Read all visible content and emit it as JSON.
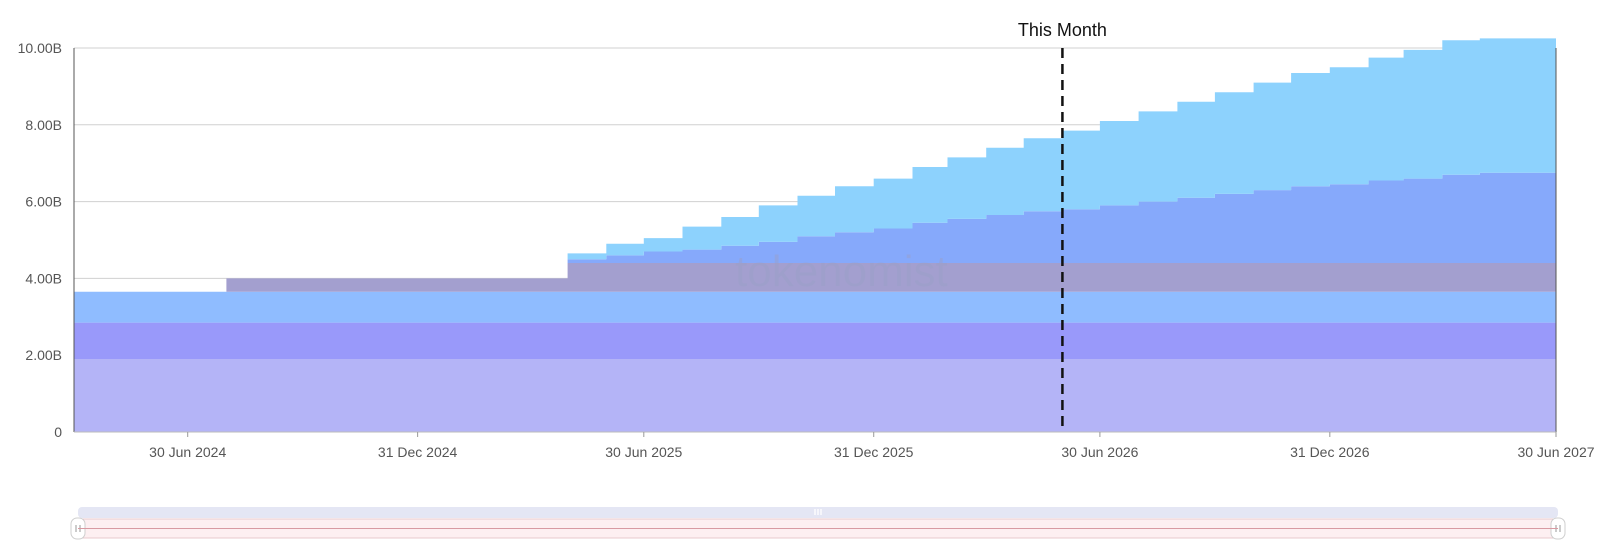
{
  "chart_data": {
    "type": "area",
    "step": true,
    "stacked": true,
    "x_axis": {
      "range": [
        "2024-03-31",
        "2027-06-30"
      ],
      "tick_labels": [
        {
          "date": "2024-06-30",
          "label": "30 Jun 2024"
        },
        {
          "date": "2024-12-31",
          "label": "31 Dec 2024"
        },
        {
          "date": "2025-06-30",
          "label": "30 Jun 2025"
        },
        {
          "date": "2025-12-31",
          "label": "31 Dec 2025"
        },
        {
          "date": "2026-06-30",
          "label": "30 Jun 2026"
        },
        {
          "date": "2026-12-31",
          "label": "31 Dec 2026"
        },
        {
          "date": "2027-06-30",
          "label": "30 Jun 2027"
        }
      ]
    },
    "y_axis": {
      "range": [
        0,
        10
      ],
      "unit": "B",
      "tick_labels": [
        {
          "value": 0,
          "label": "0"
        },
        {
          "value": 2,
          "label": "2.00B"
        },
        {
          "value": 4,
          "label": "4.00B"
        },
        {
          "value": 6,
          "label": "6.00B"
        },
        {
          "value": 8,
          "label": "8.00B"
        },
        {
          "value": 10,
          "label": "10.00B"
        }
      ]
    },
    "grid": true,
    "legend": "none",
    "annotations": [
      {
        "type": "vertical-dashed-line",
        "date": "2026-05-31",
        "label": "This Month"
      }
    ],
    "watermark": "tokenomist",
    "series": [
      {
        "color": "#b4b4f7",
        "points": [
          [
            "2024-03-31",
            1.9
          ],
          [
            "2027-06-30",
            1.9
          ]
        ]
      },
      {
        "color": "#9999fa",
        "points": [
          [
            "2024-03-31",
            0.95
          ],
          [
            "2027-06-30",
            0.95
          ]
        ]
      },
      {
        "color": "#8fbcff",
        "points": [
          [
            "2024-03-31",
            0.8
          ],
          [
            "2027-06-30",
            0.8
          ]
        ]
      },
      {
        "color": "#a39fcf",
        "points": [
          [
            "2024-03-31",
            0
          ],
          [
            "2024-07-31",
            0.35
          ],
          [
            "2025-04-30",
            0.75
          ],
          [
            "2027-06-30",
            0.75
          ]
        ]
      },
      {
        "color": "#86a9fb",
        "points": [
          [
            "2024-03-31",
            0
          ],
          [
            "2025-04-30",
            0.1
          ],
          [
            "2025-05-31",
            0.2
          ],
          [
            "2025-06-30",
            0.3
          ],
          [
            "2025-07-31",
            0.35
          ],
          [
            "2025-08-31",
            0.45
          ],
          [
            "2025-09-30",
            0.55
          ],
          [
            "2025-10-31",
            0.7
          ],
          [
            "2025-11-30",
            0.8
          ],
          [
            "2025-12-31",
            0.9
          ],
          [
            "2026-01-31",
            1.05
          ],
          [
            "2026-02-28",
            1.15
          ],
          [
            "2026-03-31",
            1.25
          ],
          [
            "2026-04-30",
            1.35
          ],
          [
            "2026-05-31",
            1.4
          ],
          [
            "2026-06-30",
            1.5
          ],
          [
            "2026-07-31",
            1.6
          ],
          [
            "2026-08-31",
            1.7
          ],
          [
            "2026-09-30",
            1.8
          ],
          [
            "2026-10-31",
            1.9
          ],
          [
            "2026-11-30",
            2.0
          ],
          [
            "2026-12-31",
            2.05
          ],
          [
            "2027-01-31",
            2.15
          ],
          [
            "2027-02-28",
            2.2
          ],
          [
            "2027-03-31",
            2.3
          ],
          [
            "2027-04-30",
            2.35
          ],
          [
            "2027-06-30",
            2.35
          ]
        ]
      },
      {
        "color": "#8dd2fd",
        "points": [
          [
            "2024-03-31",
            0
          ],
          [
            "2025-04-30",
            0.15
          ],
          [
            "2025-05-31",
            0.3
          ],
          [
            "2025-06-30",
            0.35
          ],
          [
            "2025-07-31",
            0.6
          ],
          [
            "2025-08-31",
            0.75
          ],
          [
            "2025-09-30",
            0.95
          ],
          [
            "2025-10-31",
            1.05
          ],
          [
            "2025-11-30",
            1.2
          ],
          [
            "2025-12-31",
            1.3
          ],
          [
            "2026-01-31",
            1.45
          ],
          [
            "2026-02-28",
            1.6
          ],
          [
            "2026-03-31",
            1.75
          ],
          [
            "2026-04-30",
            1.9
          ],
          [
            "2026-05-31",
            2.05
          ],
          [
            "2026-06-30",
            2.2
          ],
          [
            "2026-07-31",
            2.35
          ],
          [
            "2026-08-31",
            2.5
          ],
          [
            "2026-09-30",
            2.65
          ],
          [
            "2026-10-31",
            2.8
          ],
          [
            "2026-11-30",
            2.95
          ],
          [
            "2026-12-31",
            3.05
          ],
          [
            "2027-01-31",
            3.2
          ],
          [
            "2027-02-28",
            3.35
          ],
          [
            "2027-03-31",
            3.5
          ],
          [
            "2027-04-30",
            3.5
          ],
          [
            "2027-06-30",
            3.5
          ]
        ]
      }
    ]
  },
  "zoom_slider": {
    "track_color": "#e4e6f4",
    "selected_color": "#fdeff1",
    "range_fraction": [
      0,
      1
    ]
  }
}
